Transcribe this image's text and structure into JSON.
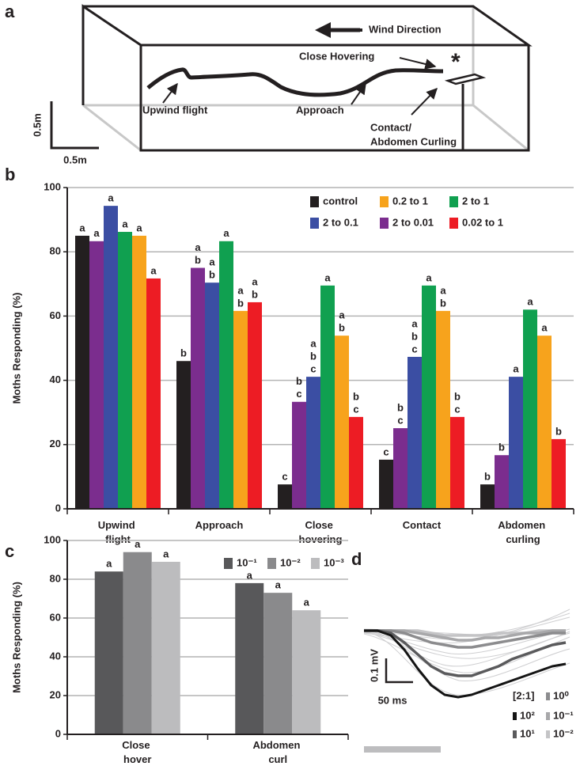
{
  "panel_labels": [
    "a",
    "b",
    "c",
    "d"
  ],
  "diagram": {
    "wind_direction": "Wind Direction",
    "close_hovering": "Close Hovering",
    "upwind_flight": "Upwind flight",
    "approach": "Approach",
    "contact": "Contact/",
    "abdomen_curling": "Abdomen Curling",
    "asterisk": "*",
    "scale_vertical": "0.5m",
    "scale_horizontal": "0.5m"
  },
  "chart_data": [
    {
      "type": "bar",
      "y_label": "Moths Responding (%)",
      "categories": [
        "Upwind flight",
        "Approach",
        "Close hovering",
        "Contact",
        "Abdomen curling"
      ],
      "ylim": [
        0,
        100
      ],
      "yticks": [
        0,
        20,
        40,
        60,
        80,
        100
      ],
      "grid": true,
      "legend": "top-right",
      "series": [
        {
          "name": "control",
          "color": "#231f20",
          "values": [
            85,
            46,
            7.6,
            15.3,
            7.6
          ],
          "letters": [
            [
              "a"
            ],
            [
              "b"
            ],
            [
              "c"
            ],
            [
              "c"
            ],
            [
              "b"
            ]
          ]
        },
        {
          "name": "2 to 0.01",
          "color": "#7b2d8e",
          "values": [
            83.3,
            75,
            33.3,
            25.1,
            16.7
          ],
          "letters": [
            [
              "a"
            ],
            [
              "a",
              "b"
            ],
            [
              "b",
              "c"
            ],
            [
              "b",
              "c"
            ],
            [
              "b"
            ]
          ]
        },
        {
          "name": "2 to 0.1",
          "color": "#3b4ea3",
          "values": [
            94.3,
            70.4,
            41.1,
            47.3,
            41.1
          ],
          "letters": [
            [
              "a"
            ],
            [
              "a",
              "b"
            ],
            [
              "a",
              "b",
              "c"
            ],
            [
              "a",
              "b",
              "c"
            ],
            [
              "a"
            ]
          ]
        },
        {
          "name": "2 to 1",
          "color": "#10a050",
          "values": [
            86.2,
            83.3,
            69.5,
            69.5,
            62
          ],
          "letters": [
            [
              "a"
            ],
            [
              "a"
            ],
            [
              "a"
            ],
            [
              "a"
            ],
            [
              "a"
            ]
          ]
        },
        {
          "name": "0.2 to 1",
          "color": "#f7a31c",
          "values": [
            85,
            61.6,
            53.9,
            61.6,
            53.9
          ],
          "letters": [
            [
              "a"
            ],
            [
              "a",
              "b"
            ],
            [
              "a",
              "b"
            ],
            [
              "a",
              "b"
            ],
            [
              "a"
            ]
          ]
        },
        {
          "name": "0.02 to 1",
          "color": "#ed1c24",
          "values": [
            71.7,
            64.3,
            28.6,
            28.6,
            21.7
          ],
          "letters": [
            [
              "a"
            ],
            [
              "a",
              "b"
            ],
            [
              "b",
              "c"
            ],
            [
              "b",
              "c"
            ],
            [
              "b"
            ]
          ]
        }
      ]
    },
    {
      "type": "bar",
      "y_label": "Moths Responding (%)",
      "categories": [
        "Close hover",
        "Abdomen curl"
      ],
      "ylim": [
        0,
        100
      ],
      "yticks": [
        0,
        20,
        40,
        60,
        80,
        100
      ],
      "grid": true,
      "legend": "top-right",
      "series": [
        {
          "name": "10⁻¹",
          "color": "#58585a",
          "values": [
            84,
            78
          ],
          "letters": [
            [
              "a"
            ],
            [
              "a"
            ]
          ]
        },
        {
          "name": "10⁻²",
          "color": "#8a8a8c",
          "values": [
            94,
            73
          ],
          "letters": [
            [
              "a"
            ],
            [
              "a"
            ]
          ]
        },
        {
          "name": "10⁻³",
          "color": "#bcbcbe",
          "values": [
            89,
            64
          ],
          "letters": [
            [
              "a"
            ],
            [
              "a"
            ]
          ]
        }
      ]
    },
    {
      "type": "line",
      "legend_title": "[2:1]",
      "x": [
        0,
        25,
        50,
        75,
        100,
        125,
        150,
        175,
        200,
        225,
        250,
        275,
        300,
        325,
        350,
        375
      ],
      "x_scale_bar": {
        "value": 50,
        "label": "50 ms"
      },
      "y_scale_bar": {
        "value": 0.1,
        "label": "0.1 mV"
      },
      "series": [
        {
          "name": "10⁻²",
          "color": "#c4c4c6",
          "values": [
            0,
            0,
            0,
            0,
            0,
            -0.01,
            -0.02,
            -0.02,
            -0.02,
            -0.02,
            -0.01,
            -0.01,
            -0.01,
            0,
            0,
            0
          ]
        },
        {
          "name": "10⁻¹",
          "color": "#a8a8aa",
          "values": [
            0,
            0,
            0,
            0,
            -0.01,
            -0.02,
            -0.03,
            -0.04,
            -0.04,
            -0.03,
            -0.03,
            -0.02,
            -0.01,
            -0.01,
            0,
            0
          ]
        },
        {
          "name": "10⁰",
          "color": "#8c8c8e",
          "values": [
            0,
            0,
            0,
            -0.01,
            -0.03,
            -0.05,
            -0.06,
            -0.07,
            -0.07,
            -0.06,
            -0.05,
            -0.04,
            -0.03,
            -0.02,
            -0.01,
            -0.01
          ]
        },
        {
          "name": "10¹",
          "color": "#5a5a5c",
          "values": [
            0,
            0,
            -0.01,
            -0.05,
            -0.1,
            -0.15,
            -0.18,
            -0.19,
            -0.19,
            -0.17,
            -0.15,
            -0.12,
            -0.1,
            -0.08,
            -0.06,
            -0.05
          ]
        },
        {
          "name": "10²",
          "color": "#141414",
          "values": [
            0,
            0,
            -0.02,
            -0.08,
            -0.16,
            -0.23,
            -0.27,
            -0.28,
            -0.27,
            -0.25,
            -0.23,
            -0.21,
            -0.19,
            -0.17,
            -0.15,
            -0.14
          ]
        }
      ]
    }
  ]
}
